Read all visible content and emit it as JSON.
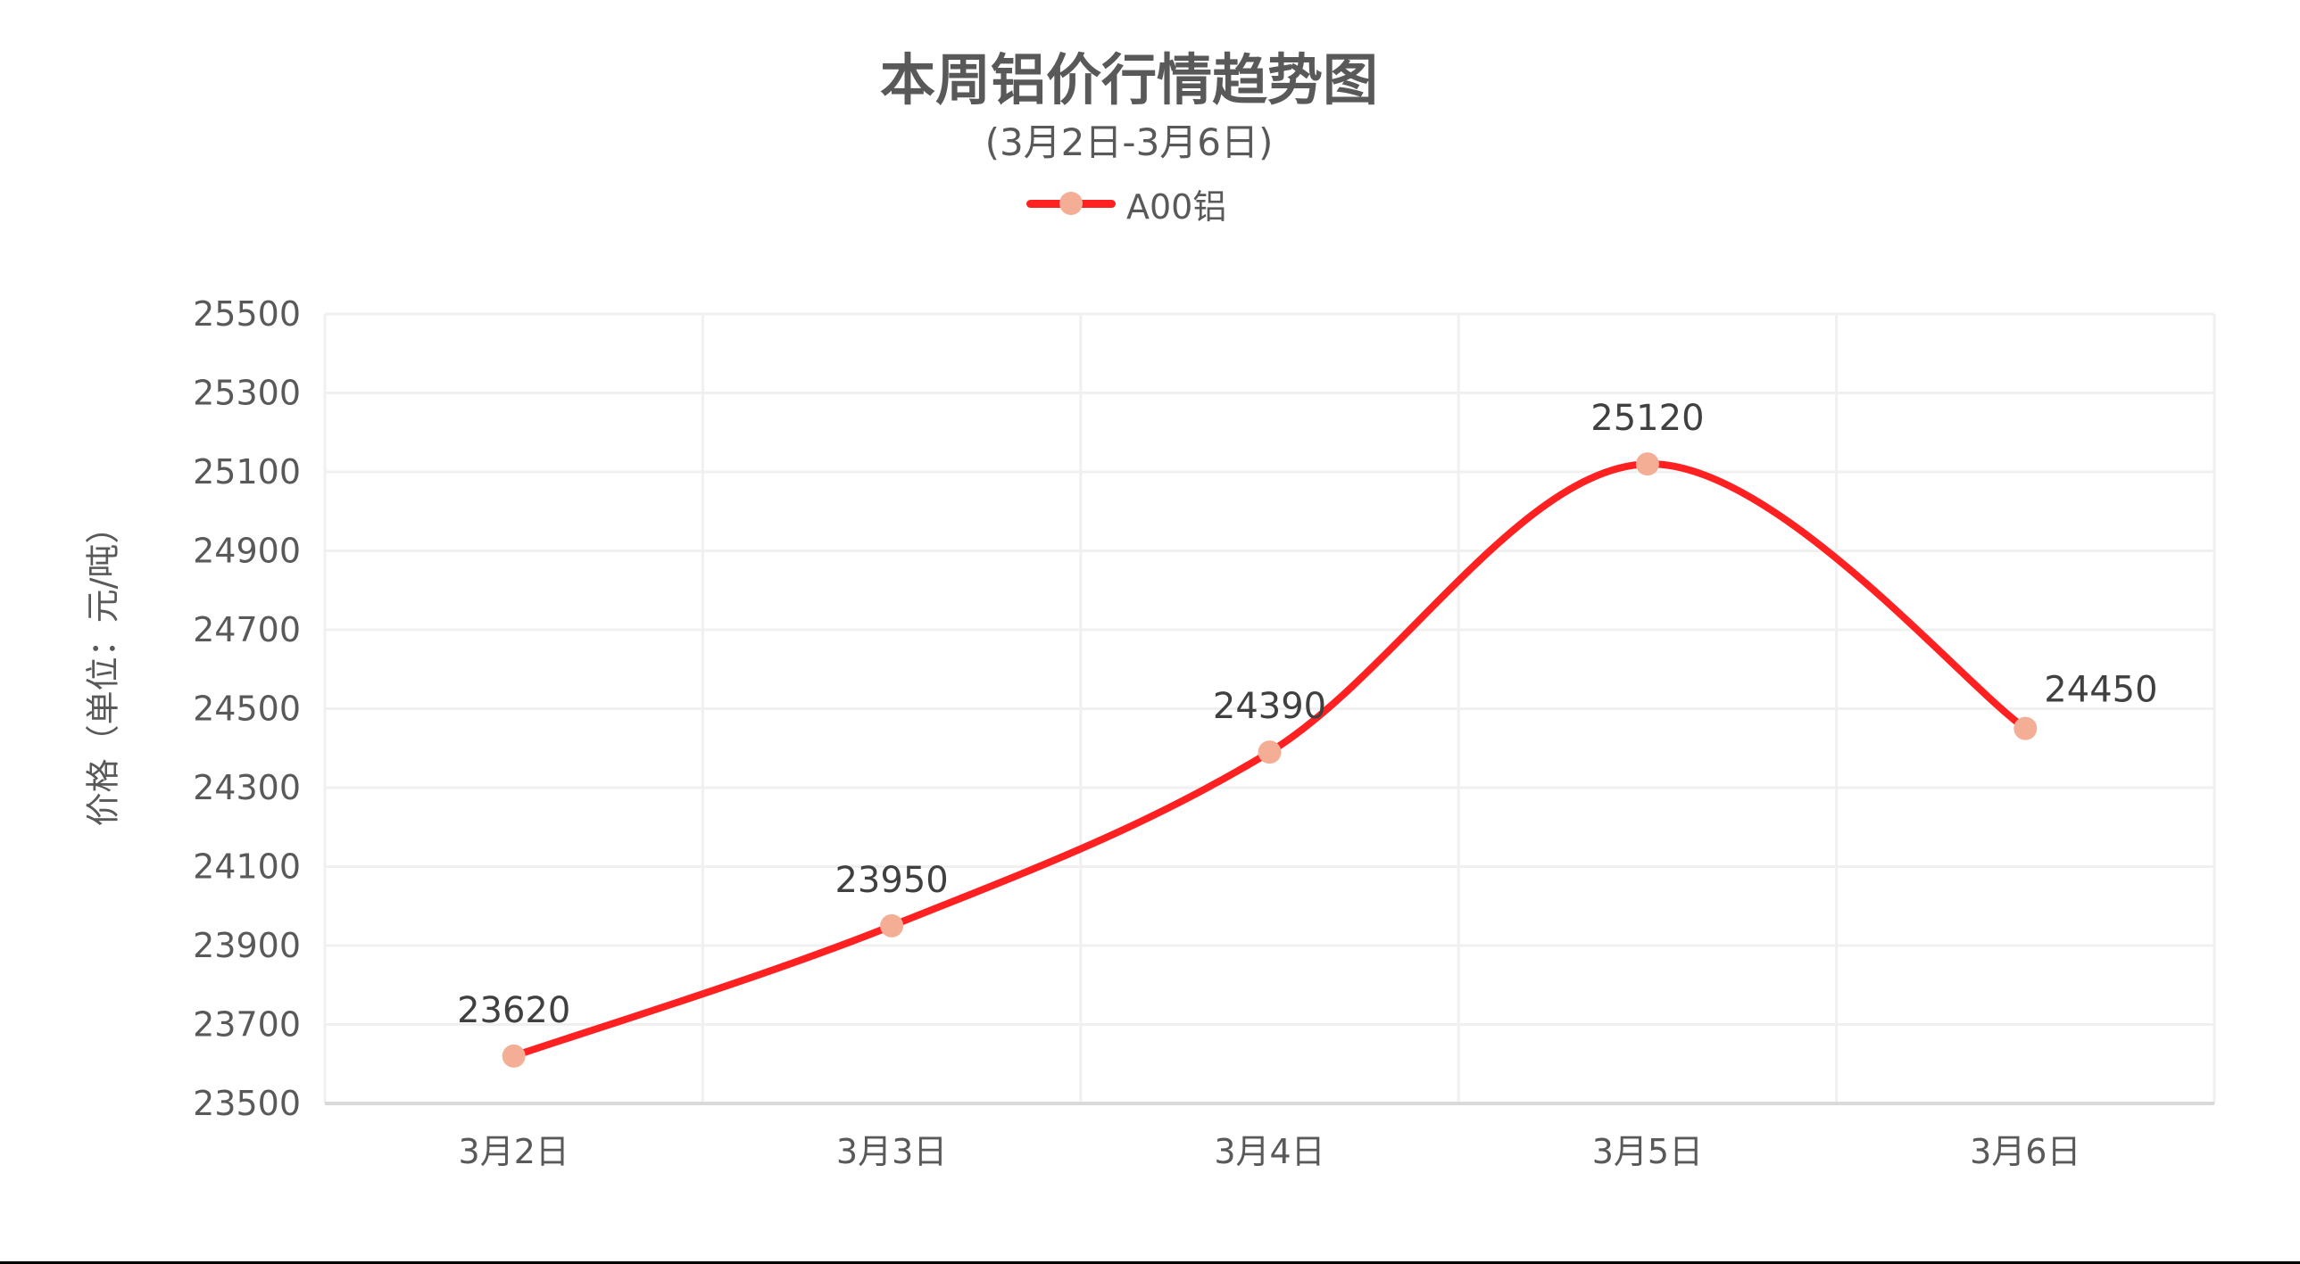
{
  "header": {
    "title": "本周铝价行情趋势图",
    "subtitle": "(3月2日-3月6日)"
  },
  "legend": {
    "items": [
      {
        "label": "A00铝",
        "line_color": "#FF2121",
        "marker_color": "#F4AE96"
      }
    ]
  },
  "axes": {
    "y_title": "价格（单位：元/吨）",
    "y_ticks": [
      "23500",
      "23700",
      "23900",
      "24100",
      "24300",
      "24500",
      "24700",
      "24900",
      "25100",
      "25300",
      "25500"
    ],
    "x_ticks": [
      "3月2日",
      "3月3日",
      "3月4日",
      "3月5日",
      "3月6日"
    ]
  },
  "colors": {
    "line": "#FF2121",
    "marker": "#F4AE96",
    "grid": "#F0F0F0",
    "axis": "#D9D9D9",
    "axis_text": "#595959",
    "data_label": "#404040"
  },
  "chart_data": {
    "type": "line",
    "title": "本周铝价行情趋势图",
    "subtitle": "(3月2日-3月6日)",
    "xlabel": "",
    "ylabel": "价格（单位：元/吨）",
    "categories": [
      "3月2日",
      "3月3日",
      "3月4日",
      "3月5日",
      "3月6日"
    ],
    "series": [
      {
        "name": "A00铝",
        "values": [
          23620,
          23950,
          24390,
          25120,
          24450
        ],
        "smooth": true,
        "data_labels": true
      }
    ],
    "ylim": [
      23500,
      25500
    ],
    "ytick_step": 200,
    "grid": true,
    "legend_position": "top"
  }
}
